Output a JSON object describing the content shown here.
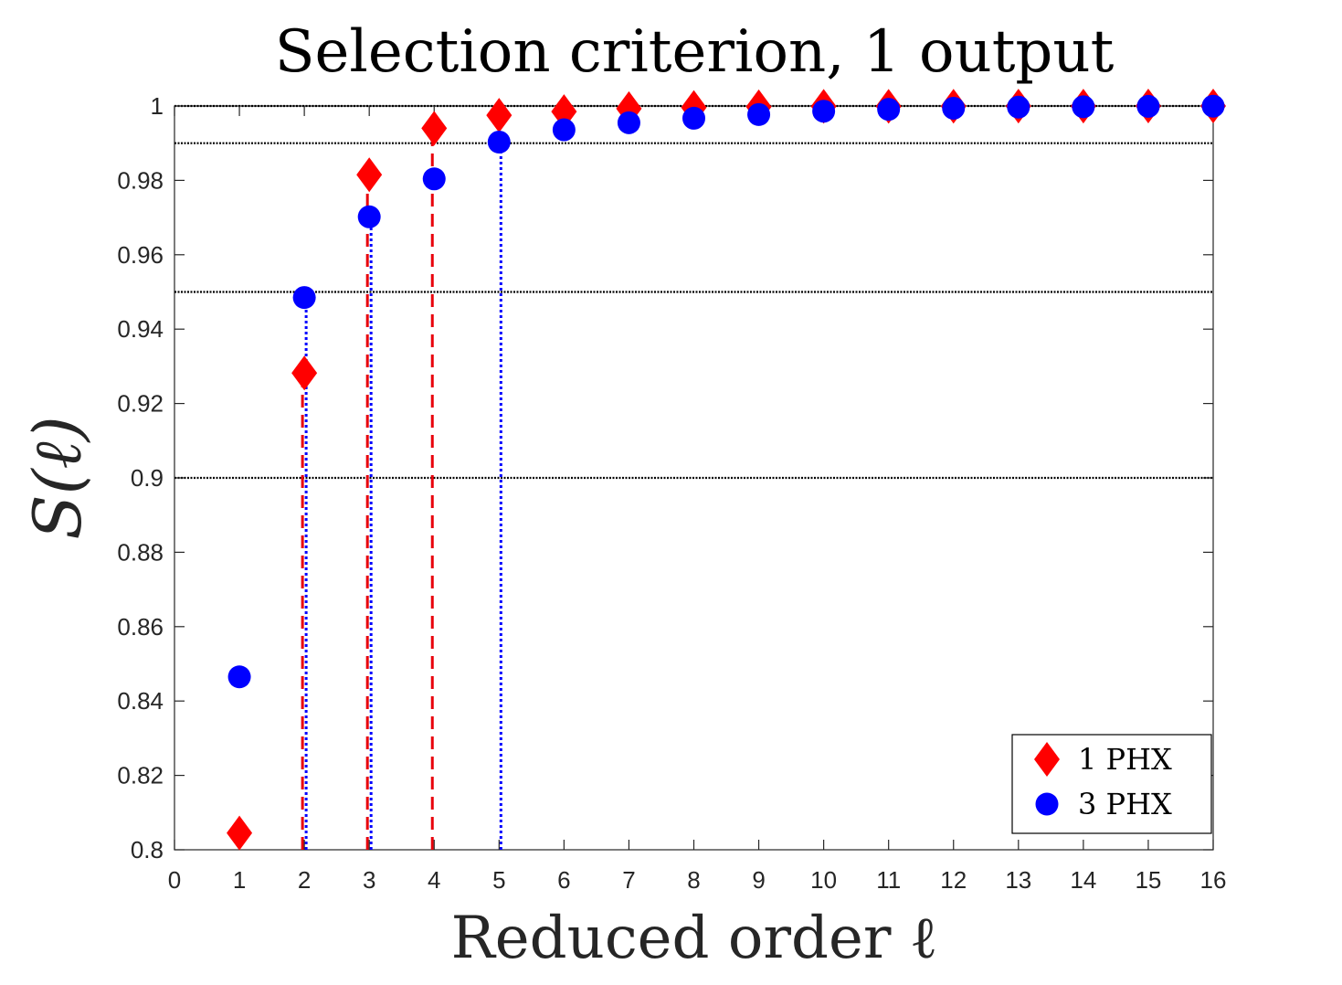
{
  "chart_data": {
    "type": "scatter",
    "title": "Selection criterion, 1 output",
    "xlabel": "Reduced order ℓ",
    "ylabel": "S(ℓ)",
    "xlim": [
      0,
      16
    ],
    "ylim": [
      0.8,
      1.0
    ],
    "x_ticks": [
      "0",
      "1",
      "2",
      "3",
      "4",
      "5",
      "6",
      "7",
      "8",
      "9",
      "10",
      "11",
      "12",
      "13",
      "14",
      "15",
      "16"
    ],
    "y_ticks": [
      "0.8",
      "0.82",
      "0.84",
      "0.86",
      "0.88",
      "0.9",
      "0.92",
      "0.94",
      "0.96",
      "0.98",
      "1"
    ],
    "grid": false,
    "threshold_lines": [
      0.9,
      0.95,
      0.99,
      1.0
    ],
    "legend_position": "bottom-right",
    "series": [
      {
        "name": "1 PHX",
        "marker": "diamond",
        "color": "#ff0000",
        "x": [
          1,
          2,
          3,
          4,
          5,
          6,
          7,
          8,
          9,
          10,
          11,
          12,
          13,
          14,
          15,
          16
        ],
        "y": [
          0.8045,
          0.9282,
          0.9815,
          0.994,
          0.9975,
          0.9985,
          0.9993,
          0.9996,
          0.9998,
          0.9999,
          0.9999,
          0.99995,
          0.99997,
          0.99998,
          0.99999,
          1.0
        ]
      },
      {
        "name": "3 PHX",
        "marker": "circle",
        "color": "#0000ff",
        "x": [
          1,
          2,
          3,
          4,
          5,
          6,
          7,
          8,
          9,
          10,
          11,
          12,
          13,
          14,
          15,
          16
        ],
        "y": [
          0.8465,
          0.9485,
          0.9702,
          0.9804,
          0.9903,
          0.9936,
          0.9955,
          0.9967,
          0.9977,
          0.9986,
          0.9991,
          0.9994,
          0.9997,
          0.9998,
          0.9999,
          0.99995
        ]
      }
    ],
    "drop_lines": [
      {
        "series": "1 PHX",
        "style": "dashed",
        "color": "#e8000b",
        "x": [
          2,
          3,
          4
        ]
      },
      {
        "series": "3 PHX",
        "style": "dotted",
        "color": "#0000ff",
        "x": [
          2,
          3,
          5
        ]
      }
    ]
  }
}
